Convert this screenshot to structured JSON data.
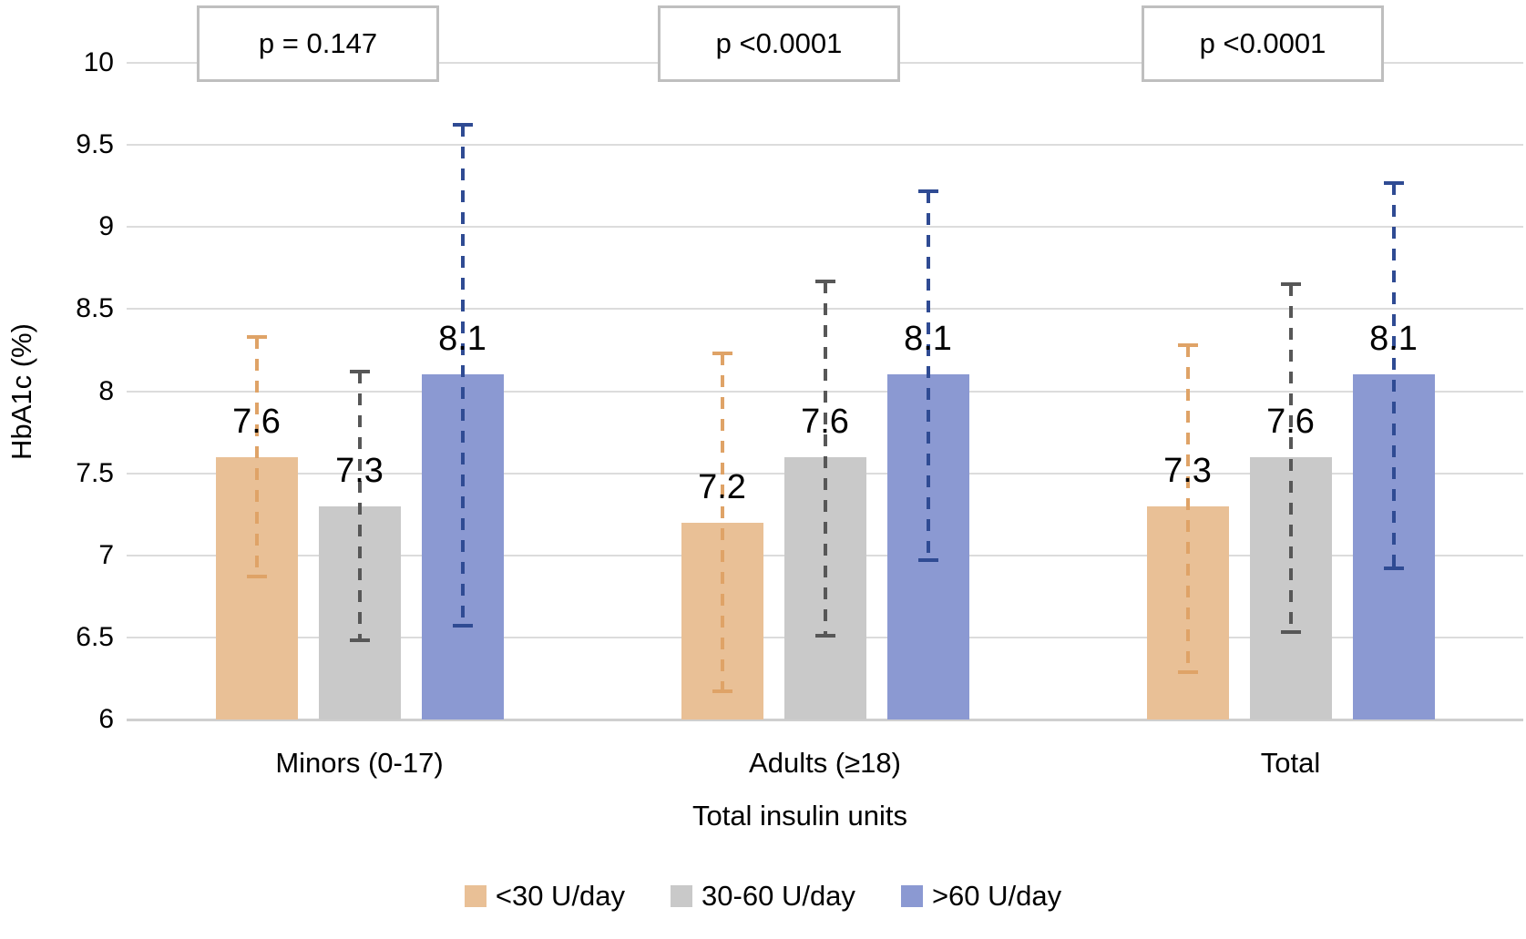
{
  "chart_data": {
    "type": "bar",
    "title": "",
    "xlabel": "Total insulin units",
    "ylabel": "HbA1c (%)",
    "ylim": [
      6,
      10
    ],
    "grid": true,
    "legend_position": "bottom",
    "categories": [
      "Minors (0-17)",
      "Adults (≥18)",
      "Total"
    ],
    "p_values": [
      "p = 0.147",
      "p <0.0001",
      "p <0.0001"
    ],
    "y_ticks": [
      {
        "value": 10,
        "label": "10"
      },
      {
        "value": 9.5,
        "label": "9.5"
      },
      {
        "value": 9,
        "label": "9"
      },
      {
        "value": 8.5,
        "label": "8.5"
      },
      {
        "value": 8,
        "label": "8"
      },
      {
        "value": 7.5,
        "label": "7.5"
      },
      {
        "value": 7,
        "label": "7"
      },
      {
        "value": 6.5,
        "label": "6.5"
      },
      {
        "value": 6,
        "label": "6"
      }
    ],
    "series": [
      {
        "name": "<30 U/day",
        "color": "#e9c096",
        "error_color": "#dfa367",
        "values": [
          7.6,
          7.2,
          7.3
        ],
        "labels": [
          "7.6",
          "7.2",
          "7.3"
        ],
        "error_low": [
          6.87,
          6.17,
          6.29
        ],
        "error_high": [
          8.33,
          8.23,
          8.28
        ]
      },
      {
        "name": "30-60 U/day",
        "color": "#c9c9c9",
        "error_color": "#575757",
        "values": [
          7.3,
          7.6,
          7.6
        ],
        "labels": [
          "7.3",
          "7.6",
          "7.6"
        ],
        "error_low": [
          6.48,
          6.51,
          6.53
        ],
        "error_high": [
          8.12,
          8.67,
          8.65
        ]
      },
      {
        "name": ">60 U/day",
        "color": "#8b99d2",
        "error_color": "#2f4b93",
        "values": [
          8.1,
          8.1,
          8.1
        ],
        "labels": [
          "8.1",
          "8.1",
          "8.1"
        ],
        "error_low": [
          6.57,
          6.97,
          6.92
        ],
        "error_high": [
          9.62,
          9.22,
          9.27
        ]
      }
    ],
    "colors": {
      "gridline": "#dcdcdc",
      "axis_line": "#cfcfcf",
      "p_box_border": "#bfbfbf",
      "text": "#000000"
    }
  }
}
